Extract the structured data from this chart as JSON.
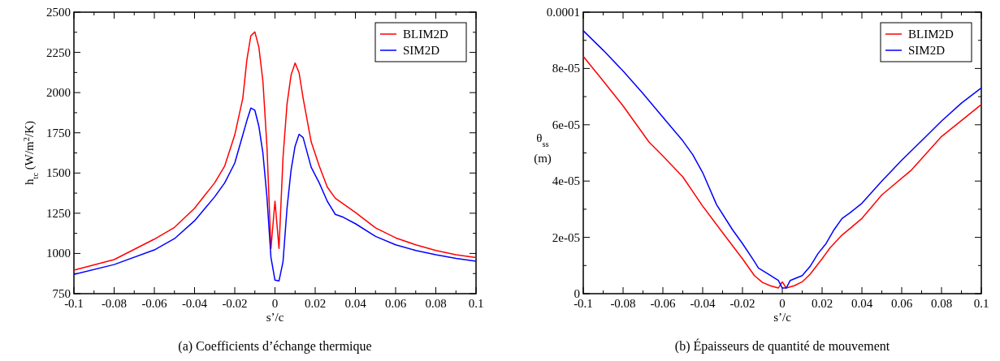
{
  "chart_data": [
    {
      "type": "line",
      "title": "(a) Coefficients d’échange thermique",
      "xlabel": "s’/c",
      "ylabel": "h$_{tc}$ (W/m$^{2}$/K)",
      "legend": "top right",
      "grid": false,
      "line_style": "solid",
      "marker": "none",
      "xlim": [
        -0.1,
        0.1
      ],
      "ylim": [
        750,
        2500
      ],
      "xticks": [
        -0.1,
        {
          "value": -0.09,
          "label": null
        },
        -0.08,
        {
          "value": -0.07,
          "label": null
        },
        -0.06,
        {
          "value": -0.05,
          "label": null
        },
        -0.04,
        {
          "value": -0.03,
          "label": null
        },
        -0.02,
        {
          "value": -0.01,
          "label": null
        },
        0,
        {
          "value": 0.01,
          "label": null
        },
        0.02,
        {
          "value": 0.03,
          "label": null
        },
        0.04,
        {
          "value": 0.05,
          "label": null
        },
        0.06,
        {
          "value": 0.07,
          "label": null
        },
        0.08,
        {
          "value": 0.09,
          "label": null
        },
        0.1
      ],
      "yticks": [
        750,
        {
          "value": 875,
          "label": null
        },
        1000,
        {
          "value": 1125,
          "label": null
        },
        1250,
        {
          "value": 1375,
          "label": null
        },
        1500,
        {
          "value": 1625,
          "label": null
        },
        1750,
        {
          "value": 1875,
          "label": null
        },
        2000,
        {
          "value": 2125,
          "label": null
        },
        2250,
        {
          "value": 2375,
          "label": null
        },
        2500
      ],
      "series": [
        {
          "name": "BLIM2D",
          "color": "#ff0000",
          "x": [
            -0.1,
            -0.08,
            -0.06,
            -0.05,
            -0.04,
            -0.03,
            -0.025,
            -0.02,
            -0.016,
            -0.014,
            -0.012,
            -0.01,
            -0.008,
            -0.006,
            -0.004,
            -0.002,
            0,
            0.002,
            0.004,
            0.006,
            0.008,
            0.01,
            0.012,
            0.014,
            0.018,
            0.022,
            0.026,
            0.03,
            0.036,
            0.04,
            0.05,
            0.06,
            0.07,
            0.08,
            0.09,
            0.1
          ],
          "values": [
            896,
            962,
            1089,
            1162,
            1281,
            1439,
            1544,
            1737,
            1965,
            2202,
            2354,
            2377,
            2281,
            2070,
            1667,
            1031,
            1325,
            1031,
            1597,
            1930,
            2109,
            2184,
            2123,
            1965,
            1694,
            1544,
            1413,
            1343,
            1290,
            1255,
            1159,
            1097,
            1054,
            1019,
            992,
            975
          ]
        },
        {
          "name": "SIM2D",
          "color": "#0000ff",
          "x": [
            -0.1,
            -0.08,
            -0.06,
            -0.05,
            -0.04,
            -0.03,
            -0.025,
            -0.02,
            -0.016,
            -0.014,
            -0.012,
            -0.01,
            -0.008,
            -0.006,
            -0.004,
            -0.002,
            0,
            0.002,
            0.004,
            0.006,
            0.008,
            0.01,
            0.012,
            0.014,
            0.018,
            0.022,
            0.026,
            0.03,
            0.034,
            0.04,
            0.05,
            0.06,
            0.07,
            0.08,
            0.09,
            0.1
          ],
          "values": [
            870,
            931,
            1022,
            1092,
            1203,
            1352,
            1439,
            1562,
            1737,
            1825,
            1904,
            1890,
            1790,
            1624,
            1352,
            975,
            834,
            829,
            949,
            1282,
            1518,
            1667,
            1741,
            1720,
            1536,
            1439,
            1325,
            1243,
            1225,
            1185,
            1106,
            1054,
            1019,
            992,
            969,
            952
          ]
        }
      ]
    },
    {
      "type": "line",
      "title": "(b) Épaisseurs de quantité de mouvement",
      "xlabel": "s’/c",
      "ylabel": "θ$_{ss}$ (m)",
      "legend": "top right",
      "grid": false,
      "line_style": "solid",
      "marker": "none",
      "xlim": [
        -0.1,
        0.1
      ],
      "ylim": [
        0,
        0.0001
      ],
      "xticks": [
        -0.1,
        {
          "value": -0.09,
          "label": null
        },
        -0.08,
        {
          "value": -0.07,
          "label": null
        },
        -0.06,
        {
          "value": -0.05,
          "label": null
        },
        -0.04,
        {
          "value": -0.03,
          "label": null
        },
        -0.02,
        {
          "value": -0.01,
          "label": null
        },
        0,
        {
          "value": 0.01,
          "label": null
        },
        0.02,
        {
          "value": 0.03,
          "label": null
        },
        0.04,
        {
          "value": 0.05,
          "label": null
        },
        0.06,
        {
          "value": 0.07,
          "label": null
        },
        0.08,
        {
          "value": 0.09,
          "label": null
        },
        0.1
      ],
      "yticks": [
        0,
        {
          "value": 1e-05,
          "label": null
        },
        {
          "value": 2e-05,
          "label": "2e-05"
        },
        {
          "value": 3e-05,
          "label": null
        },
        {
          "value": 4e-05,
          "label": "4e-05"
        },
        {
          "value": 5e-05,
          "label": null
        },
        {
          "value": 6e-05,
          "label": "6e-05"
        },
        {
          "value": 7e-05,
          "label": null
        },
        {
          "value": 8e-05,
          "label": "8e-05"
        },
        {
          "value": 9e-05,
          "label": null
        },
        {
          "value": 0.0001,
          "label": "0.0001"
        }
      ],
      "series": [
        {
          "name": "BLIM2D",
          "color": "#ff0000",
          "x": [
            -0.1,
            -0.09,
            -0.08,
            -0.067,
            -0.06,
            -0.05,
            -0.04,
            -0.03,
            -0.02,
            -0.014,
            -0.01,
            -0.006,
            -0.002,
            0,
            0.002,
            0.006,
            0.01,
            0.014,
            0.02,
            0.024,
            0.03,
            0.04,
            0.05,
            0.065,
            0.08,
            0.1
          ],
          "values": [
            8.43e-05,
            7.56e-05,
            6.67e-05,
            5.39e-05,
            4.89e-05,
            4.15e-05,
            3.11e-05,
            2.17e-05,
            1.24e-05,
            6.4e-06,
            4e-06,
            2.8e-06,
            2e-06,
            4.2e-06,
            2e-06,
            2.8e-06,
            4.2e-06,
            6.9e-06,
            1.24e-05,
            1.63e-05,
            2.08e-05,
            2.67e-05,
            3.51e-05,
            4.4e-05,
            5.58e-05,
            6.72e-05
          ]
        },
        {
          "name": "SIM2D",
          "color": "#0000ff",
          "x": [
            -0.1,
            -0.09,
            -0.08,
            -0.07,
            -0.06,
            -0.05,
            -0.045,
            -0.04,
            -0.033,
            -0.025,
            -0.02,
            -0.014,
            -0.012,
            -0.008,
            -0.002,
            0,
            0.002,
            0.004,
            0.01,
            0.014,
            0.018,
            0.022,
            0.026,
            0.03,
            0.034,
            0.04,
            0.05,
            0.06,
            0.07,
            0.08,
            0.09,
            0.1
          ],
          "values": [
            9.34e-05,
            8.65e-05,
            7.91e-05,
            7.11e-05,
            6.27e-05,
            5.43e-05,
            4.94e-05,
            4.3e-05,
            3.16e-05,
            2.27e-05,
            1.78e-05,
            1.14e-05,
            9.1e-06,
            7.4e-06,
            4.7e-06,
            2e-06,
            2e-06,
            4.7e-06,
            6.4e-06,
            9.7e-06,
            1.43e-05,
            1.78e-05,
            2.27e-05,
            2.67e-05,
            2.87e-05,
            3.21e-05,
            4e-05,
            4.74e-05,
            5.43e-05,
            6.13e-05,
            6.77e-05,
            7.31e-05
          ]
        }
      ]
    }
  ]
}
